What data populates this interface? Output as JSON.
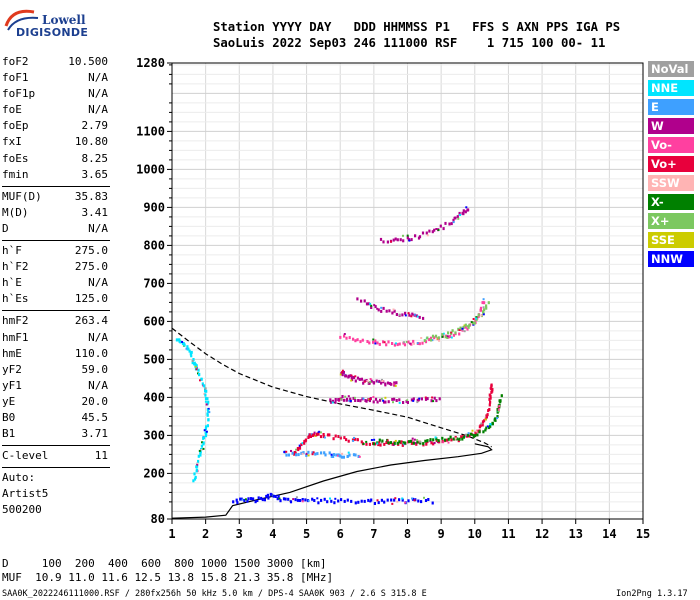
{
  "logo": {
    "line1": "Lowell",
    "line2": "DIGISONDE"
  },
  "header": {
    "line1": "Station YYYY DAY   DDD HHMMSS P1   FFS S AXN PPS IGA PS",
    "line2": "SaoLuis 2022 Sep03 246 111000 RSF    1 715 100 00- 11"
  },
  "params": [
    [
      [
        "foF2",
        "10.500"
      ],
      [
        "foF1",
        "N/A"
      ],
      [
        "foF1p",
        "N/A"
      ],
      [
        "foE",
        "N/A"
      ],
      [
        "foEp",
        "2.79"
      ],
      [
        "fxI",
        "10.80"
      ],
      [
        "foEs",
        "8.25"
      ],
      [
        "fmin",
        "3.65"
      ]
    ],
    [
      [
        "MUF(D)",
        "35.83"
      ],
      [
        "M(D)",
        "3.41"
      ],
      [
        "D",
        "N/A"
      ]
    ],
    [
      [
        "h`F",
        "275.0"
      ],
      [
        "h`F2",
        "275.0"
      ],
      [
        "h`E",
        "N/A"
      ],
      [
        "h`Es",
        "125.0"
      ]
    ],
    [
      [
        "hmF2",
        "263.4"
      ],
      [
        "hmF1",
        "N/A"
      ],
      [
        "hmE",
        "110.0"
      ],
      [
        "yF2",
        "59.0"
      ],
      [
        "yF1",
        "N/A"
      ],
      [
        "yE",
        "20.0"
      ],
      [
        "B0",
        "45.5"
      ],
      [
        "B1",
        "3.71"
      ]
    ],
    [
      [
        "C-level",
        "11"
      ]
    ]
  ],
  "auto": {
    "line1": "Auto:",
    "line2": "Artist5",
    "line3": "500200"
  },
  "legend": [
    {
      "label": "NoVal",
      "color": "#a0a0a0"
    },
    {
      "label": "NNE",
      "color": "#00e5ff"
    },
    {
      "label": "E",
      "color": "#3ea0ff"
    },
    {
      "label": "W",
      "color": "#b0008c"
    },
    {
      "label": "Vo-",
      "color": "#ff40a0"
    },
    {
      "label": "Vo+",
      "color": "#e8003c"
    },
    {
      "label": "SSW",
      "color": "#ffb4b4"
    },
    {
      "label": "X-",
      "color": "#008000"
    },
    {
      "label": "X+",
      "color": "#7cc860"
    },
    {
      "label": "SSE",
      "color": "#cccc00"
    },
    {
      "label": "NNW",
      "color": "#0000ff"
    }
  ],
  "footer": {
    "d_row": "D     100  200  400  600  800 1000 1500 3000 [km]",
    "muf_row": "MUF  10.9 11.0 11.6 12.5 13.8 15.8 21.3 35.8 [MHz]",
    "info": "SAA0K_2022246111000.RSF / 280fx256h 50 kHz 5.0 km / DPS-4 SAA0K 903 / 2.6 S 315.8 E",
    "version": "Ion2Png 1.3.17"
  },
  "chart_data": {
    "type": "scatter",
    "xlim": [
      1,
      15
    ],
    "ylim": [
      80,
      1280
    ],
    "x_ticks": [
      1,
      2,
      3,
      4,
      5,
      6,
      7,
      8,
      9,
      10,
      11,
      12,
      13,
      14,
      15
    ],
    "y_ticks": [
      80,
      200,
      300,
      400,
      500,
      600,
      700,
      800,
      900,
      1000,
      1100,
      1280
    ],
    "grid": true,
    "legend_position": "right",
    "profile_solid": [
      [
        1.0,
        82
      ],
      [
        2.0,
        85
      ],
      [
        2.6,
        90
      ],
      [
        2.8,
        115
      ],
      [
        3.5,
        130
      ],
      [
        4.5,
        150
      ],
      [
        5.5,
        180
      ],
      [
        6.5,
        205
      ],
      [
        7.5,
        222
      ],
      [
        8.5,
        234
      ],
      [
        9.5,
        244
      ],
      [
        10.2,
        253
      ],
      [
        10.5,
        262
      ],
      [
        10.4,
        270
      ],
      [
        10.0,
        278
      ]
    ],
    "mufline_dashed": [
      [
        1.0,
        582
      ],
      [
        1.5,
        548
      ],
      [
        2.0,
        515
      ],
      [
        2.5,
        487
      ],
      [
        3.0,
        463
      ],
      [
        4.0,
        427
      ],
      [
        5.0,
        402
      ],
      [
        6.0,
        383
      ],
      [
        7.0,
        366
      ],
      [
        8.0,
        348
      ],
      [
        9.0,
        320
      ],
      [
        9.8,
        298
      ],
      [
        10.3,
        280
      ],
      [
        10.5,
        270
      ]
    ],
    "traces": [
      {
        "name": "F2 O-trace",
        "color": "#e8003c",
        "points": [
          [
            4.6,
            255
          ],
          [
            4.8,
            275
          ],
          [
            5.0,
            298
          ],
          [
            5.2,
            308
          ],
          [
            5.5,
            303
          ],
          [
            6.0,
            295
          ],
          [
            6.5,
            288
          ],
          [
            7.0,
            283
          ],
          [
            7.5,
            281
          ],
          [
            8.0,
            282
          ],
          [
            8.5,
            284
          ],
          [
            9.0,
            288
          ],
          [
            9.5,
            295
          ],
          [
            9.9,
            305
          ],
          [
            10.1,
            318
          ],
          [
            10.3,
            345
          ],
          [
            10.4,
            380
          ],
          [
            10.45,
            420
          ],
          [
            10.5,
            440
          ]
        ]
      },
      {
        "name": "F2 X-trace",
        "color": "#008000",
        "points": [
          [
            7.0,
            287
          ],
          [
            7.5,
            285
          ],
          [
            8.0,
            286
          ],
          [
            8.5,
            288
          ],
          [
            9.0,
            292
          ],
          [
            9.5,
            298
          ],
          [
            10.0,
            306
          ],
          [
            10.4,
            322
          ],
          [
            10.6,
            350
          ],
          [
            10.7,
            380
          ],
          [
            10.75,
            410
          ]
        ]
      },
      {
        "name": "F2 2nd hop O",
        "color": "#ff40a0",
        "points": [
          [
            6.0,
            565
          ],
          [
            6.5,
            553
          ],
          [
            7.0,
            548
          ],
          [
            7.5,
            546
          ],
          [
            8.0,
            547
          ],
          [
            8.5,
            552
          ],
          [
            9.0,
            560
          ],
          [
            9.5,
            575
          ],
          [
            9.9,
            595
          ],
          [
            10.1,
            625
          ],
          [
            10.25,
            660
          ]
        ]
      },
      {
        "name": "F2 2nd hop X",
        "color": "#7cc860",
        "points": [
          [
            8.5,
            557
          ],
          [
            9.0,
            566
          ],
          [
            9.5,
            580
          ],
          [
            9.9,
            600
          ],
          [
            10.2,
            625
          ],
          [
            10.4,
            660
          ]
        ]
      },
      {
        "name": "Es spread",
        "color": "#0000ff",
        "points": [
          [
            2.8,
            130
          ],
          [
            3.2,
            132
          ],
          [
            3.6,
            135
          ],
          [
            3.9,
            145
          ],
          [
            4.2,
            137
          ],
          [
            4.7,
            133
          ],
          [
            5.2,
            132
          ],
          [
            5.8,
            131
          ],
          [
            6.4,
            131
          ],
          [
            7.0,
            130
          ],
          [
            7.6,
            130
          ],
          [
            8.2,
            131
          ],
          [
            8.8,
            131
          ]
        ]
      },
      {
        "name": "F spread mid",
        "color": "#b0008c",
        "points": [
          [
            5.7,
            393
          ],
          [
            6.0,
            402
          ],
          [
            6.3,
            397
          ],
          [
            6.7,
            397
          ],
          [
            7.0,
            396
          ],
          [
            7.5,
            395
          ],
          [
            8.0,
            395
          ],
          [
            8.5,
            396
          ],
          [
            9.0,
            398
          ]
        ]
      },
      {
        "name": "F spread 3",
        "color": "#b0008c",
        "points": [
          [
            6.0,
            470
          ],
          [
            6.2,
            459
          ],
          [
            6.4,
            452
          ],
          [
            6.7,
            445
          ],
          [
            7.0,
            442
          ],
          [
            7.4,
            441
          ],
          [
            7.7,
            440
          ]
        ]
      },
      {
        "name": "F multi-hop 4",
        "color": "#b0008c",
        "points": [
          [
            6.5,
            660
          ],
          [
            7.0,
            638
          ],
          [
            7.5,
            628
          ],
          [
            8.0,
            622
          ],
          [
            8.5,
            612
          ]
        ]
      },
      {
        "name": "F multi-hop 5",
        "color": "#b0008c",
        "points": [
          [
            7.2,
            818
          ],
          [
            7.7,
            818
          ],
          [
            8.2,
            825
          ],
          [
            8.7,
            840
          ],
          [
            9.2,
            860
          ],
          [
            9.6,
            890
          ],
          [
            9.8,
            905
          ]
        ]
      },
      {
        "name": "F2 low branch",
        "color": "#3ea0ff",
        "points": [
          [
            4.3,
            257
          ],
          [
            4.8,
            256
          ],
          [
            5.3,
            255
          ],
          [
            5.8,
            253
          ],
          [
            6.1,
            251
          ],
          [
            6.6,
            250
          ]
        ]
      },
      {
        "name": "low-freq cusp",
        "color": "#00e5ff",
        "points": [
          [
            1.1,
            560
          ],
          [
            1.3,
            545
          ],
          [
            1.5,
            530
          ],
          [
            1.6,
            500
          ],
          [
            1.7,
            480
          ],
          [
            1.9,
            440
          ],
          [
            2.0,
            405
          ],
          [
            2.05,
            360
          ],
          [
            2.0,
            320
          ],
          [
            1.9,
            285
          ],
          [
            1.8,
            250
          ],
          [
            1.7,
            215
          ],
          [
            1.6,
            180
          ]
        ]
      }
    ]
  }
}
